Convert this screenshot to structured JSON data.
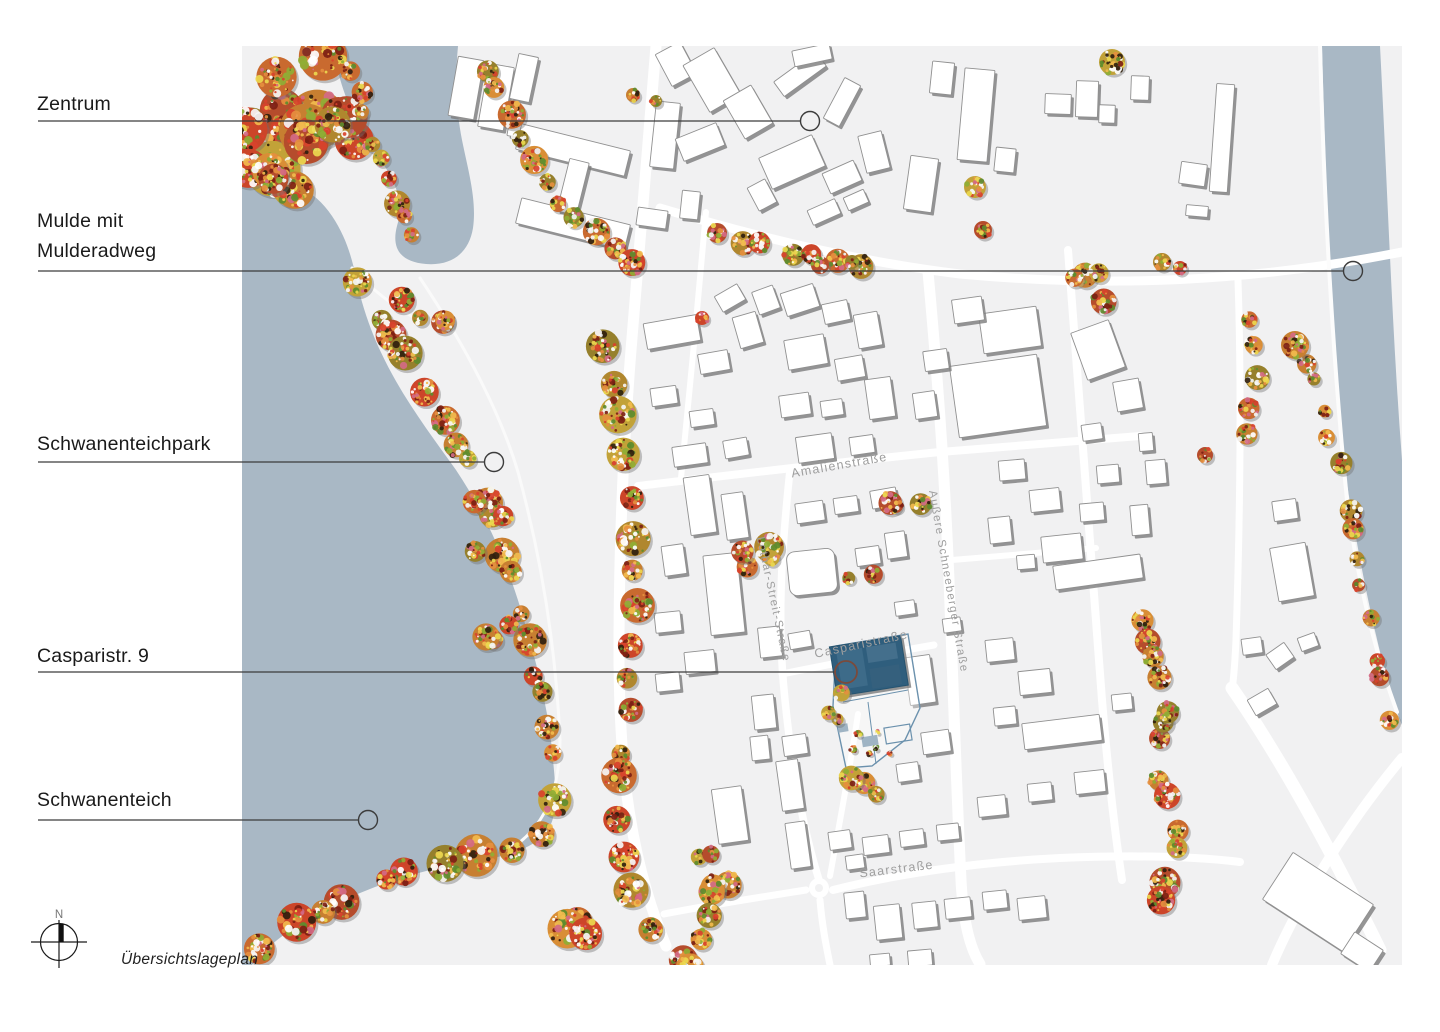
{
  "page": {
    "title": "Übersichtslageplan",
    "compass_label": "N"
  },
  "annotations": [
    {
      "id": "zentrum",
      "label": "Zentrum"
    },
    {
      "id": "mulde",
      "label": "Mulde mit Mulderadweg",
      "lines": [
        "Mulde mit",
        "Mulderadweg"
      ]
    },
    {
      "id": "schwanenteichpark",
      "label": "Schwanenteichpark"
    },
    {
      "id": "casparistr-9",
      "label": "Casparistr. 9"
    },
    {
      "id": "schwanenteich",
      "label": "Schwanenteich"
    }
  ],
  "map": {
    "streets": [
      {
        "name": "Amalienstraße"
      },
      {
        "name": "Lothar-Streit-Straße"
      },
      {
        "name": "Außere Schneeberger Straße"
      },
      {
        "name": "Casparistraße"
      },
      {
        "name": "Saarstraße"
      }
    ],
    "colors": {
      "land": "#f1f1f2",
      "road": "#ffffff",
      "water": "#a9b8c5",
      "building_fill": "#ffffff",
      "building_stroke": "#909090",
      "building_shadow": "#7c7c7c",
      "street_label": "#9e9e9e",
      "leader_line": "#3c3c3c",
      "site_marker": "#7b4a3b",
      "site_building": "#2f5e7d",
      "site_building_light": "#3d6b89",
      "site_boundary": "#6b91ad",
      "tree_bases": [
        "#c96a2f",
        "#cc4529",
        "#d98e36",
        "#c2a238",
        "#b54c2c",
        "#c77f31",
        "#b0872e",
        "#96802c"
      ],
      "tree_speckles": [
        "#7d2013",
        "#ecd84f",
        "#5d8c2e",
        "#f5f5f5",
        "#30200e",
        "#e58f3f",
        "#d8422c",
        "#8fae35",
        "#f2bb4e",
        "#ffffff",
        "#d46a85"
      ]
    }
  }
}
